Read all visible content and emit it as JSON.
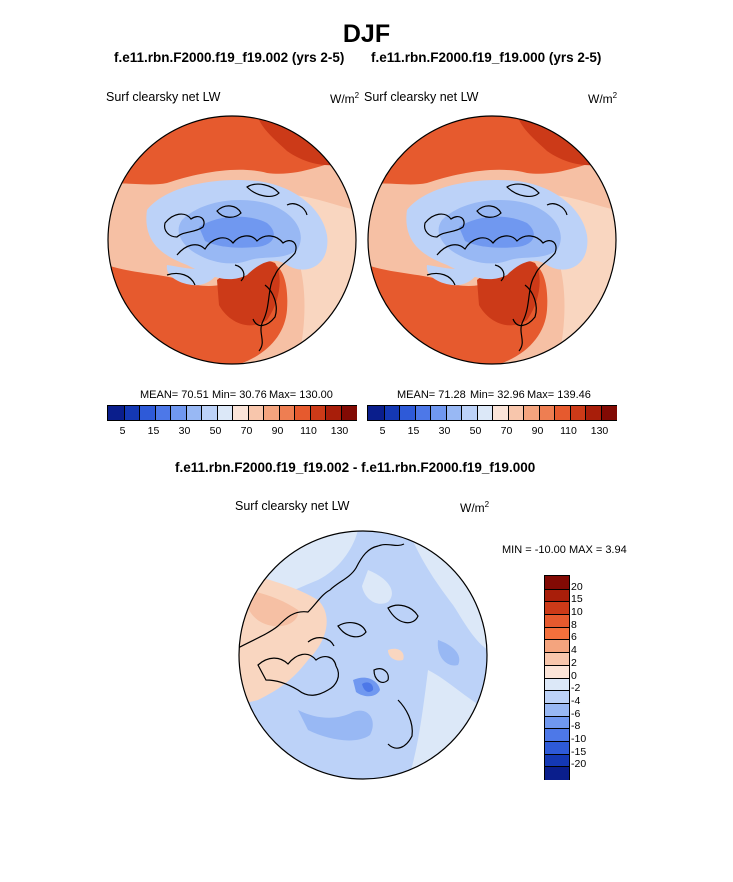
{
  "title": "DJF",
  "chart_data": [
    {
      "type": "heatmap",
      "projection": "polar stereographic, north pole",
      "case": "f.e11.rbn.F2000.f19_f19.002 (yrs 2-5)",
      "variable": "Surf clearsky net LW",
      "units": "W/m",
      "units_exp": "2",
      "stats": {
        "mean": "MEAN=  70.51",
        "min": "Min=  30.76",
        "max": "Max= 130.00"
      },
      "colorbar": {
        "orientation": "horizontal",
        "ticks": [
          "5",
          "15",
          "30",
          "50",
          "70",
          "90",
          "110",
          "130"
        ],
        "colors": [
          "#0a1e8c",
          "#1438b4",
          "#2e5ad8",
          "#4d78e8",
          "#7098f0",
          "#98b8f4",
          "#bcd2f8",
          "#dce8f8",
          "#fbe4d8",
          "#f8c6ac",
          "#f4a47e",
          "#ee7e52",
          "#e65a2e",
          "#cc3a18",
          "#a81e0a",
          "#820a04"
        ]
      }
    },
    {
      "type": "heatmap",
      "projection": "polar stereographic, north pole",
      "case": "f.e11.rbn.F2000.f19_f19.000 (yrs 2-5)",
      "variable": "Surf clearsky net LW",
      "units": "W/m",
      "units_exp": "2",
      "stats": {
        "mean": "MEAN=  71.28",
        "min": "Min=  32.96",
        "max": "Max= 139.46"
      },
      "colorbar": {
        "orientation": "horizontal",
        "ticks": [
          "5",
          "15",
          "30",
          "50",
          "70",
          "90",
          "110",
          "130"
        ],
        "colors": [
          "#0a1e8c",
          "#1438b4",
          "#2e5ad8",
          "#4d78e8",
          "#7098f0",
          "#98b8f4",
          "#bcd2f8",
          "#dce8f8",
          "#fbe4d8",
          "#f8c6ac",
          "#f4a47e",
          "#ee7e52",
          "#e65a2e",
          "#cc3a18",
          "#a81e0a",
          "#820a04"
        ]
      }
    },
    {
      "type": "heatmap",
      "projection": "polar stereographic, north pole",
      "case": "f.e11.rbn.F2000.f19_f19.002 - f.e11.rbn.F2000.f19_f19.000",
      "variable": "Surf clearsky net LW",
      "units": "W/m",
      "units_exp": "2",
      "stats": {
        "minmax": "MIN = -10.00 MAX =   3.94"
      },
      "colorbar": {
        "orientation": "vertical",
        "ticks": [
          "20",
          "15",
          "10",
          "8",
          "6",
          "4",
          "2",
          "0",
          "-2",
          "-4",
          "-6",
          "-8",
          "-10",
          "-15",
          "-20"
        ],
        "colors": [
          "#820a04",
          "#a81e0a",
          "#cc3a18",
          "#e65a2e",
          "#f4703c",
          "#f4a47e",
          "#f8c6ac",
          "#fbe4d8",
          "#dce8f8",
          "#bcd2f8",
          "#98b8f4",
          "#7098f0",
          "#4d78e8",
          "#2e5ad8",
          "#1438b4",
          "#0a1e8c"
        ]
      }
    }
  ]
}
